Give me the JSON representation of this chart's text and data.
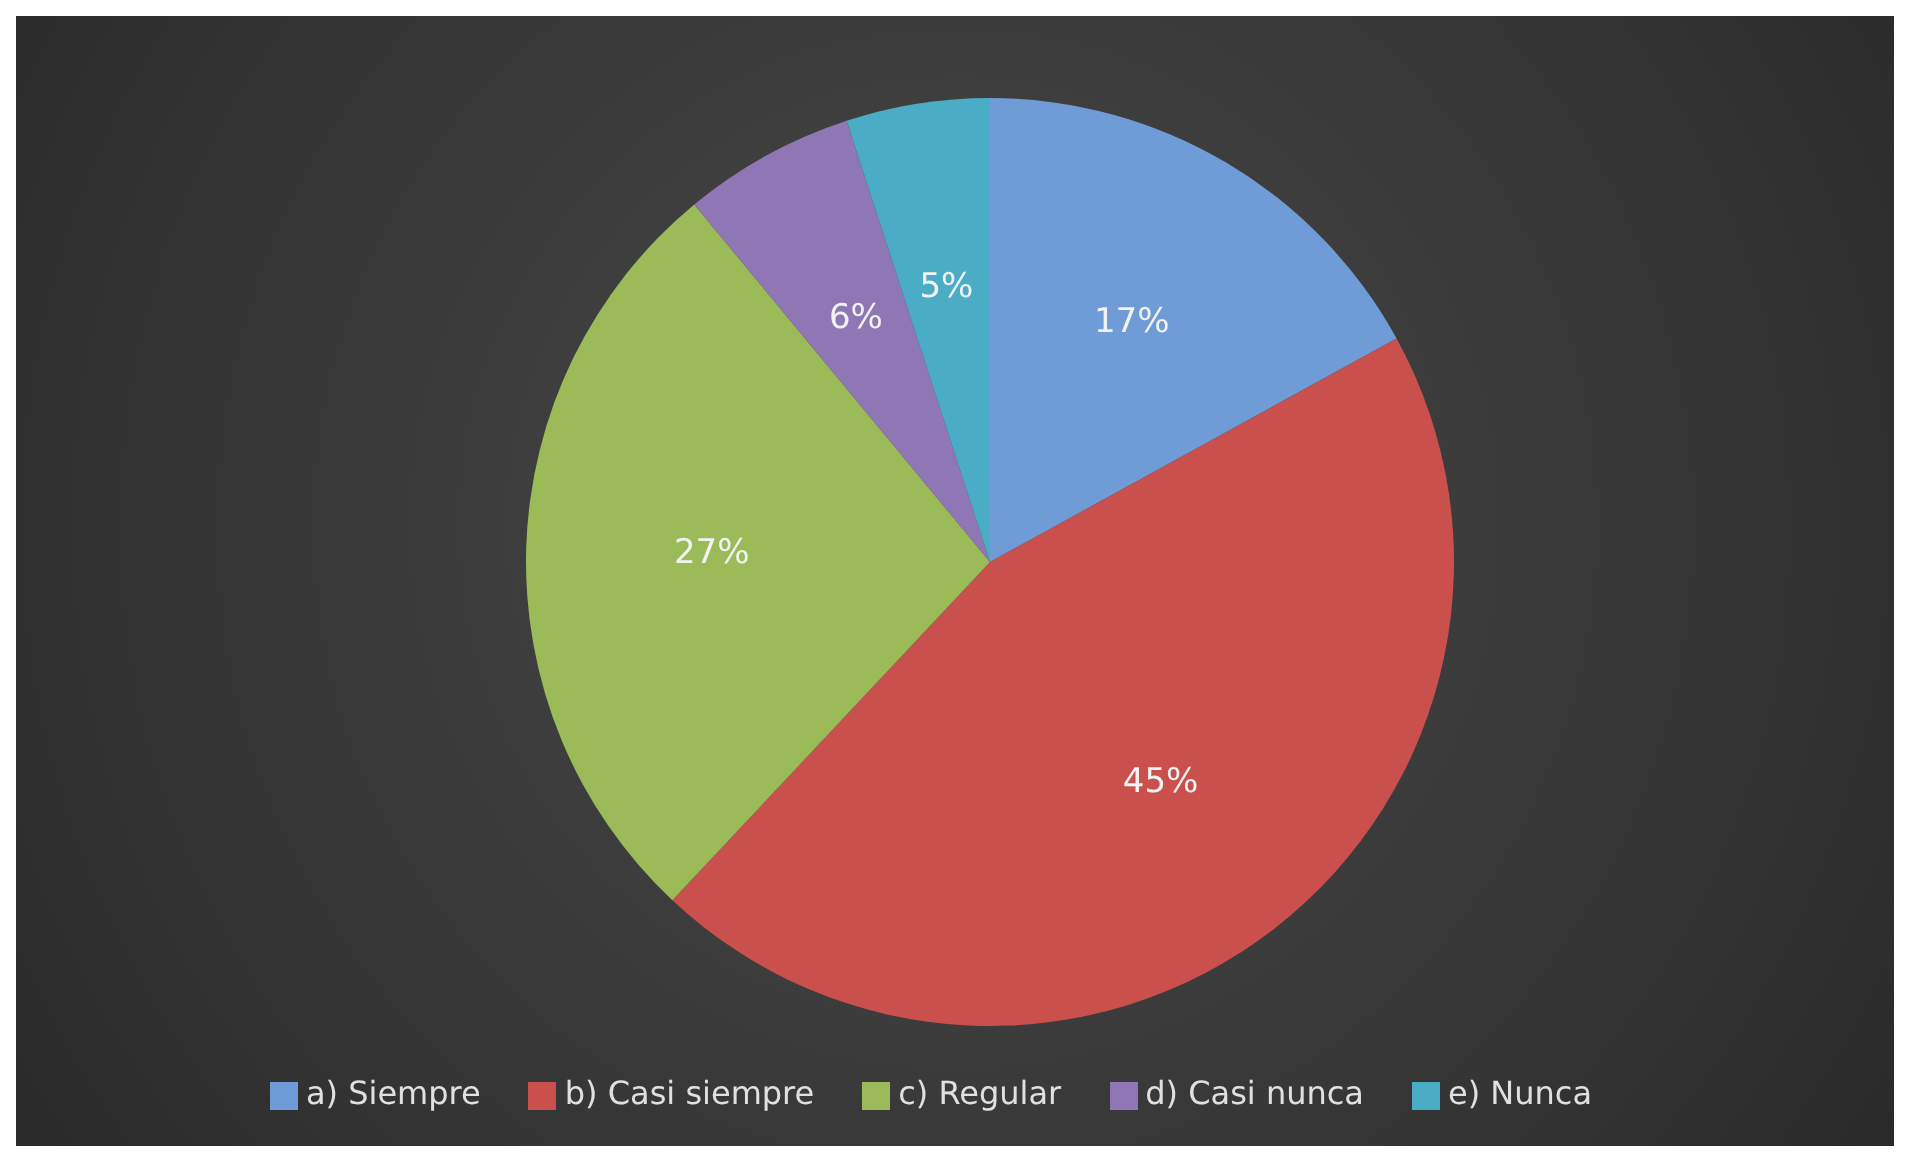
{
  "chart_data": {
    "type": "pie",
    "categories": [
      "a) Siempre",
      "b) Casi siempre",
      "c) Regular",
      "d) Casi nunca",
      "e) Nunca"
    ],
    "values": [
      17,
      45,
      27,
      6,
      5
    ],
    "colors": [
      "#6f9bd6",
      "#c9504d",
      "#9bbb59",
      "#8f76b4",
      "#4bacc6"
    ],
    "value_labels": [
      "17%",
      "45%",
      "27%",
      "6%",
      "5%"
    ],
    "legend": "bottom"
  }
}
